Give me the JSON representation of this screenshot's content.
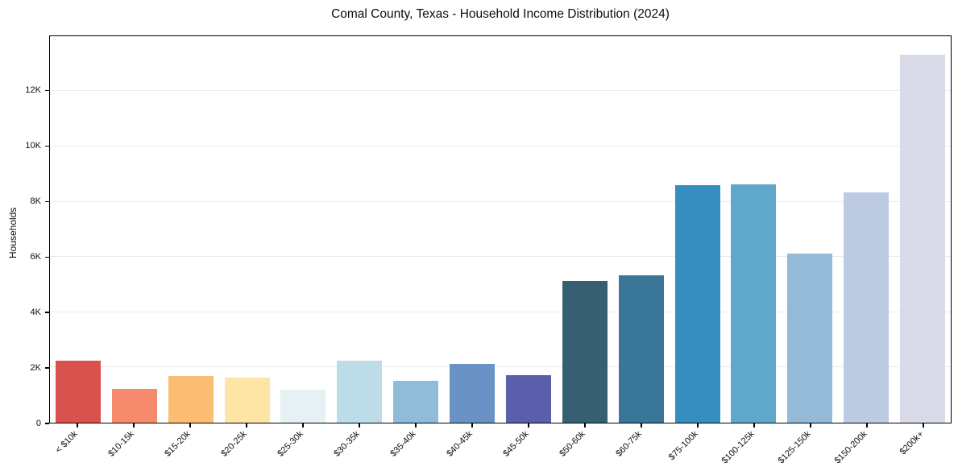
{
  "chart_data": {
    "type": "bar",
    "title": "Comal County, Texas - Household Income Distribution (2024)",
    "xlabel": "",
    "ylabel": "Households",
    "categories": [
      "< $10k",
      "$10-15k",
      "$15-20k",
      "$20-25k",
      "$25-30k",
      "$30-35k",
      "$35-40k",
      "$40-45k",
      "$45-50k",
      "$50-60k",
      "$60-75k",
      "$75-100k",
      "$100-125k",
      "$125-150k",
      "$150-200k",
      "$200k+"
    ],
    "values": [
      2250,
      1230,
      1690,
      1630,
      1200,
      2250,
      1530,
      2120,
      1720,
      5130,
      5340,
      8600,
      8620,
      6110,
      8330,
      13320
    ],
    "bar_colors": [
      "#d9534e",
      "#f58b6c",
      "#fbbd74",
      "#fee5a5",
      "#e5f1f2",
      "#bddcea",
      "#90bcd9",
      "#6b92c4",
      "#5b5fab",
      "#366072",
      "#3a7697",
      "#358dc0",
      "#5fa8cb",
      "#94bad7",
      "#bccae2",
      "#d8dae8"
    ],
    "ylim": [
      0,
      13990
    ],
    "yticks": {
      "values": [
        0,
        2000,
        4000,
        6000,
        8000,
        10000,
        12000
      ],
      "labels": [
        "0",
        "2K",
        "4K",
        "6K",
        "8K",
        "10K",
        "12K"
      ]
    },
    "bar_width_fraction": 0.8,
    "grid": "horizontal",
    "legend": "none"
  },
  "style": {
    "background": "#ffffff",
    "grid_color": "#ebebeb",
    "axis_color": "#000000",
    "text_color": "#0d0d0d"
  }
}
